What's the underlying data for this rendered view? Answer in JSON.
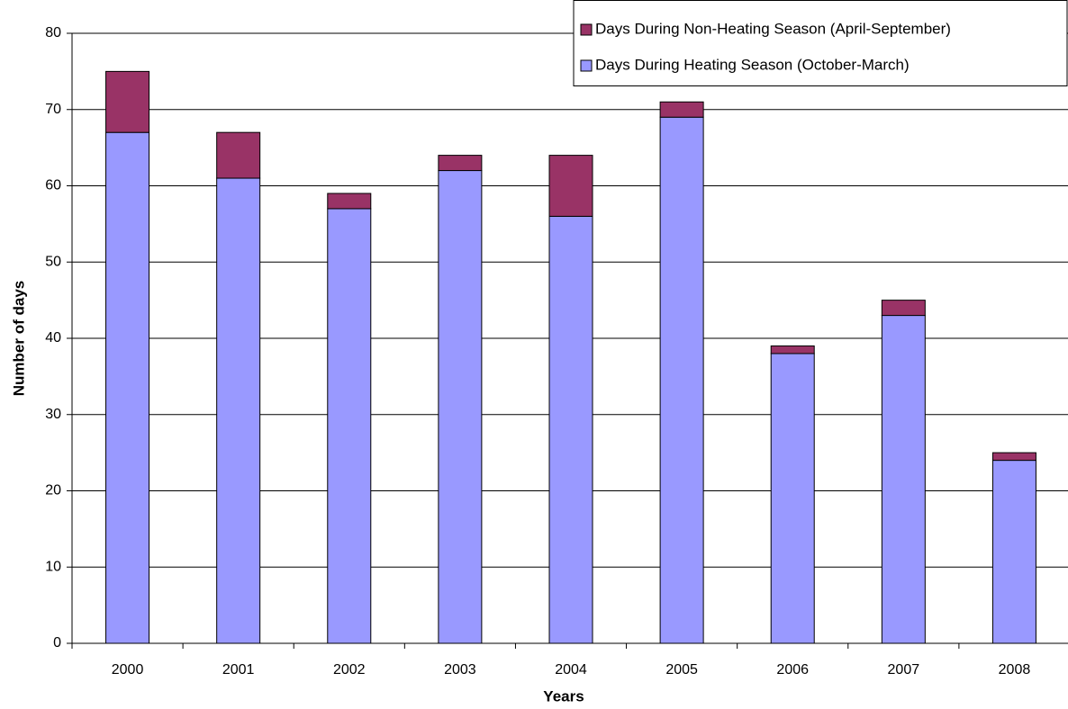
{
  "chart_data": {
    "type": "stacked_bar",
    "categories": [
      "2000",
      "2001",
      "2002",
      "2003",
      "2004",
      "2005",
      "2006",
      "2007",
      "2008"
    ],
    "series": [
      {
        "name": "Days During Heating Season (October-March)",
        "color": "#9999ff",
        "values": [
          67,
          61,
          57,
          62,
          56,
          69,
          38,
          43,
          24
        ]
      },
      {
        "name": "Days During Non-Heating Season (April-September)",
        "color": "#993366",
        "values": [
          8,
          6,
          2,
          2,
          8,
          2,
          1,
          2,
          1
        ]
      }
    ],
    "ylim": [
      0,
      80
    ],
    "yticks": [
      0,
      10,
      20,
      30,
      40,
      50,
      60,
      70,
      80
    ],
    "grid": true,
    "y_label": "Number of days",
    "x_label": "Years",
    "legend": "top-right"
  }
}
